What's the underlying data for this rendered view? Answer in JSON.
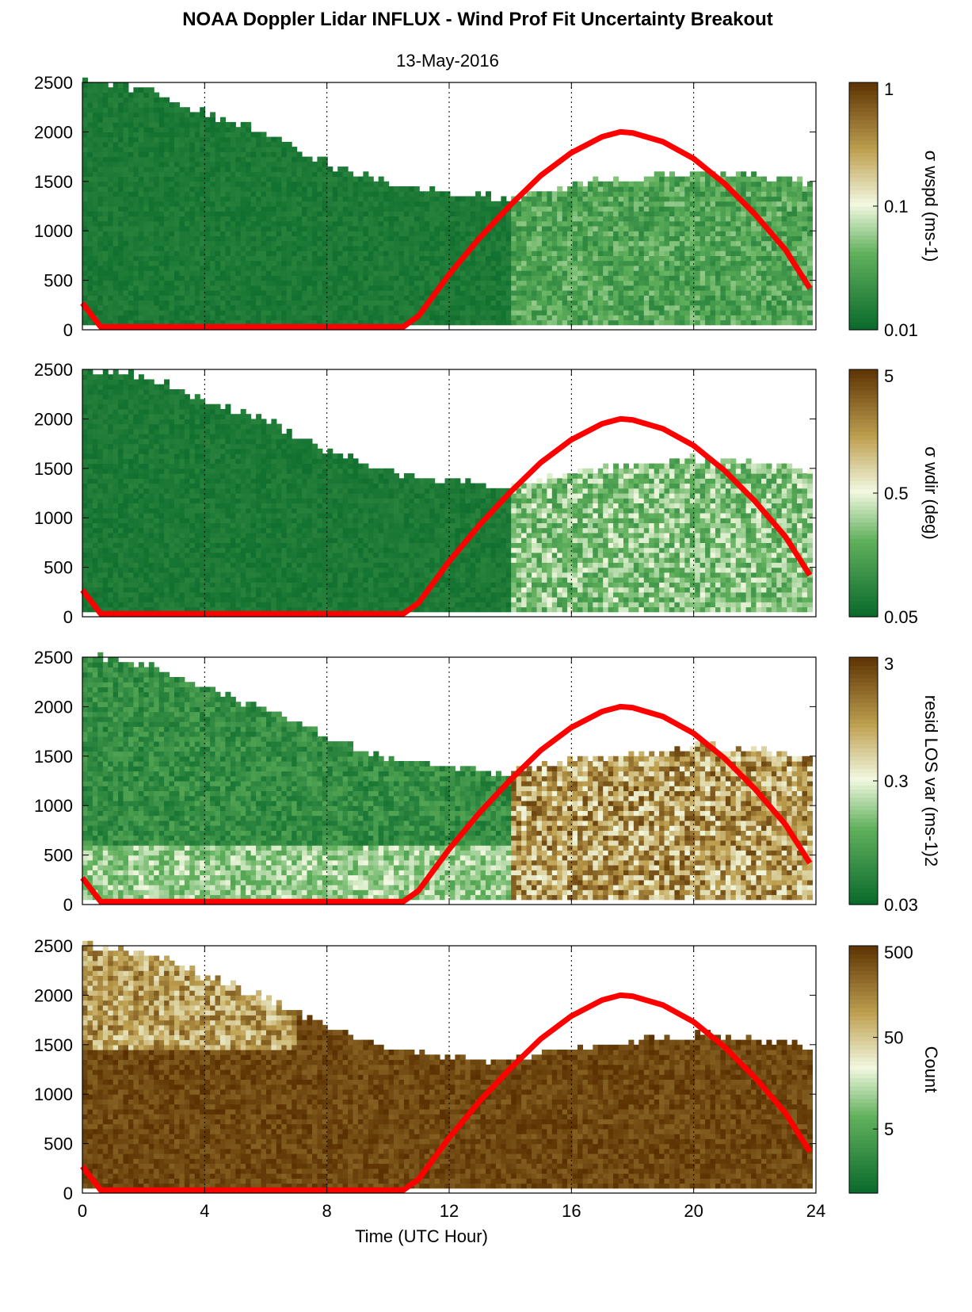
{
  "title": "NOAA Doppler Lidar INFLUX - Wind Prof Fit Uncertainty Breakout",
  "subtitle": "13-May-2016",
  "colors": {
    "low": "#0b6b2c",
    "mid": "#f2f8e0",
    "high": "#5a3000",
    "line": "#ff0000"
  },
  "chart_data": [
    {
      "type": "heatmap",
      "xlabel": "",
      "ylabel": "",
      "xlim": [
        0,
        24
      ],
      "ylim": [
        0,
        2500
      ],
      "y_ticks": [
        "0",
        "500",
        "1000",
        "1500",
        "2000",
        "2500"
      ],
      "x_ticks": [
        0,
        4,
        8,
        12,
        16,
        20,
        24
      ],
      "grid": "vertical dotted",
      "colorbar": {
        "label": "σ wspd (ms-1)",
        "scale": "log",
        "range": [
          0.01,
          1
        ],
        "ticks": [
          "0.01",
          "0.1",
          "1"
        ]
      },
      "cloud_top": {
        "x": [
          0,
          2,
          4,
          6,
          8,
          10,
          12,
          14,
          16,
          18,
          20,
          22,
          23.8
        ],
        "y": [
          2500,
          2400,
          2150,
          1950,
          1650,
          1450,
          1350,
          1300,
          1450,
          1500,
          1580,
          1530,
          1450
        ]
      },
      "field_description": "dark green low uncertainty at night, lighter green patches after 14 UTC",
      "mode": "wspd"
    },
    {
      "type": "heatmap",
      "xlim": [
        0,
        24
      ],
      "ylim": [
        0,
        2500
      ],
      "y_ticks": [
        "0",
        "500",
        "1000",
        "1500",
        "2000",
        "2500"
      ],
      "colorbar": {
        "label": "σ wdir (deg)",
        "scale": "log",
        "range": [
          0.05,
          5
        ],
        "ticks": [
          "0.05",
          "0.5",
          "5"
        ]
      },
      "cloud_top": {
        "x": [
          0,
          2,
          4,
          6,
          8,
          10,
          12,
          14,
          16,
          18,
          20,
          22,
          23.8
        ],
        "y": [
          2500,
          2400,
          2150,
          1950,
          1650,
          1450,
          1350,
          1300,
          1450,
          1500,
          1580,
          1530,
          1450
        ]
      },
      "mode": "wdir"
    },
    {
      "type": "heatmap",
      "xlim": [
        0,
        24
      ],
      "ylim": [
        0,
        2500
      ],
      "y_ticks": [
        "0",
        "500",
        "1000",
        "1500",
        "2000",
        "2500"
      ],
      "colorbar": {
        "label": "resid LOS var (ms-1)2",
        "scale": "log",
        "range": [
          0.03,
          3
        ],
        "ticks": [
          "0.03",
          "0.3",
          "3"
        ]
      },
      "cloud_top": {
        "x": [
          0,
          2,
          4,
          6,
          8,
          10,
          12,
          14,
          16,
          18,
          20,
          22,
          23.8
        ],
        "y": [
          2500,
          2400,
          2150,
          1950,
          1650,
          1450,
          1350,
          1300,
          1450,
          1500,
          1580,
          1530,
          1450
        ]
      },
      "mode": "resid"
    },
    {
      "type": "heatmap",
      "xlabel": "Time (UTC Hour)",
      "xlim": [
        0,
        24
      ],
      "ylim": [
        0,
        2500
      ],
      "y_ticks": [
        "0",
        "500",
        "1000",
        "1500",
        "2000",
        "2500"
      ],
      "x_ticks": [
        "0",
        "4",
        "8",
        "12",
        "16",
        "20",
        "24"
      ],
      "colorbar": {
        "label": "Count",
        "scale": "log",
        "range": [
          1,
          500
        ],
        "ticks": [
          "5",
          "50",
          "500"
        ]
      },
      "cloud_top": {
        "x": [
          0,
          2,
          4,
          6,
          8,
          10,
          12,
          14,
          16,
          18,
          20,
          22,
          23.8
        ],
        "y": [
          2500,
          2400,
          2150,
          1950,
          1650,
          1450,
          1350,
          1300,
          1450,
          1500,
          1580,
          1530,
          1450
        ]
      },
      "mode": "count"
    }
  ],
  "overlay_line": {
    "name": "solar elevation curve",
    "color": "#ff0000",
    "x": [
      0,
      0.6,
      10.5,
      11,
      12,
      13,
      14,
      15,
      16,
      17,
      17.6,
      18,
      19,
      20,
      21,
      22,
      23,
      23.8
    ],
    "y": [
      270,
      30,
      30,
      140,
      560,
      930,
      1260,
      1560,
      1790,
      1950,
      2000,
      1990,
      1900,
      1730,
      1480,
      1170,
      810,
      420
    ]
  }
}
